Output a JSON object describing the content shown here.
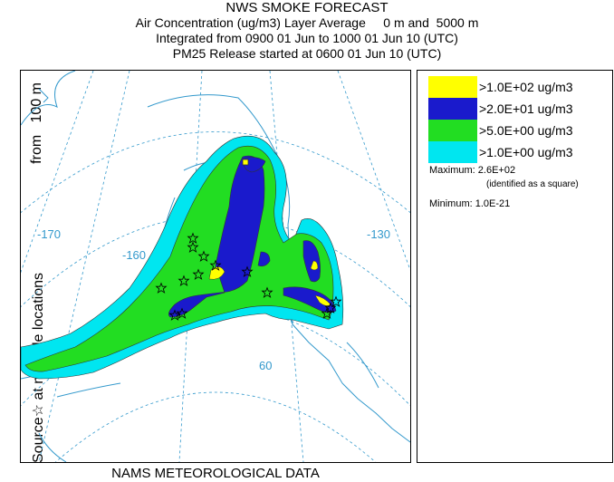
{
  "title": {
    "line1": "NWS SMOKE FORECAST",
    "line2": "Air Concentration (ug/m3) Layer Average     0 m and  5000 m",
    "line3": "Integrated from 0900 01 Jun to 1000 01 Jun 10 (UTC)",
    "line4": "PM25 Release started at 0600 01 Jun 10 (UTC)"
  },
  "side_label": {
    "main": "Source☆  at multiple locations",
    "from": "from   100 m"
  },
  "bottom_label": "NAMS METEOROLOGICAL DATA",
  "map": {
    "longitude_labels": [
      "-170",
      "-160",
      "-130"
    ],
    "latitude_label": "60",
    "colors": {
      "land_outline": "#3399cc",
      "graticule": "#3399cc",
      "contour_outline": "#333333"
    }
  },
  "legend": {
    "items": [
      {
        "label": ">1.0E+02 ug/m3",
        "color": "#ffff00"
      },
      {
        "label": ">2.0E+01 ug/m3",
        "color": "#1a1acc"
      },
      {
        "label": ">5.0E+00 ug/m3",
        "color": "#22dd22"
      },
      {
        "label": ">1.0E+00 ug/m3",
        "color": "#00e6f0"
      }
    ],
    "maximum_label": "Maximum:",
    "maximum_value": "2.6E+02",
    "maximum_note": "(identified as a square)",
    "minimum_label": "Minimum:",
    "minimum_value": "1.0E-21"
  }
}
